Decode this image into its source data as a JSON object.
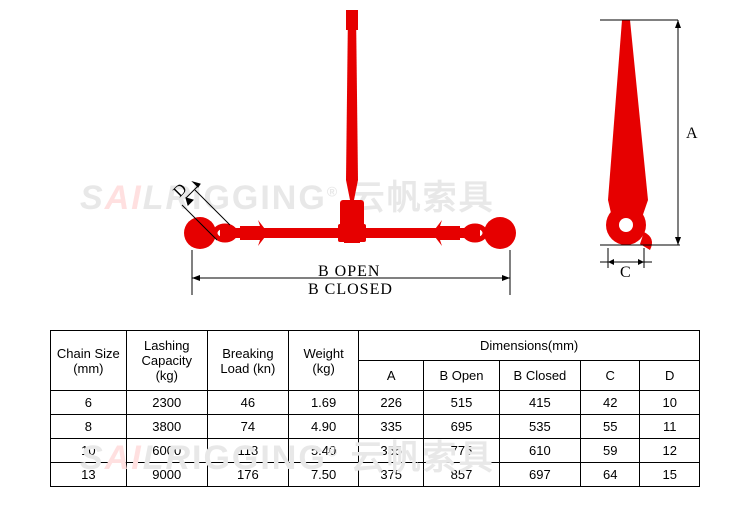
{
  "diagram": {
    "color_red": "#e60000",
    "color_line": "#000000",
    "watermark_text_1": "SailRigging",
    "watermark_text_2": "云帆索具",
    "label_b_open": "B OPEN",
    "label_b_closed": "B CLOSED",
    "label_a": "A",
    "label_c": "C",
    "label_d": "D"
  },
  "table": {
    "headers": {
      "chain_size": "Chain Size (mm)",
      "lashing": "Lashing Capacity (kg)",
      "breaking": "Breaking Load (kn)",
      "weight": "Weight (kg)",
      "dimensions": "Dimensions(mm)",
      "a": "A",
      "b_open": "B Open",
      "b_closed": "B Closed",
      "c": "C",
      "d": "D"
    },
    "rows": [
      {
        "size": "6",
        "lash": "2300",
        "brk": "46",
        "wt": "1.69",
        "a": "226",
        "bo": "515",
        "bc": "415",
        "c": "42",
        "d": "10"
      },
      {
        "size": "8",
        "lash": "3800",
        "brk": "74",
        "wt": "4.90",
        "a": "335",
        "bo": "695",
        "bc": "535",
        "c": "55",
        "d": "11"
      },
      {
        "size": "10",
        "lash": "6000",
        "brk": "118",
        "wt": "5.40",
        "a": "355",
        "bo": "775",
        "bc": "610",
        "c": "59",
        "d": "12"
      },
      {
        "size": "13",
        "lash": "9000",
        "brk": "176",
        "wt": "7.50",
        "a": "375",
        "bo": "857",
        "bc": "697",
        "c": "64",
        "d": "15"
      }
    ],
    "col_widths": [
      "70",
      "75",
      "75",
      "65",
      "60",
      "70",
      "75",
      "55",
      "55"
    ]
  }
}
